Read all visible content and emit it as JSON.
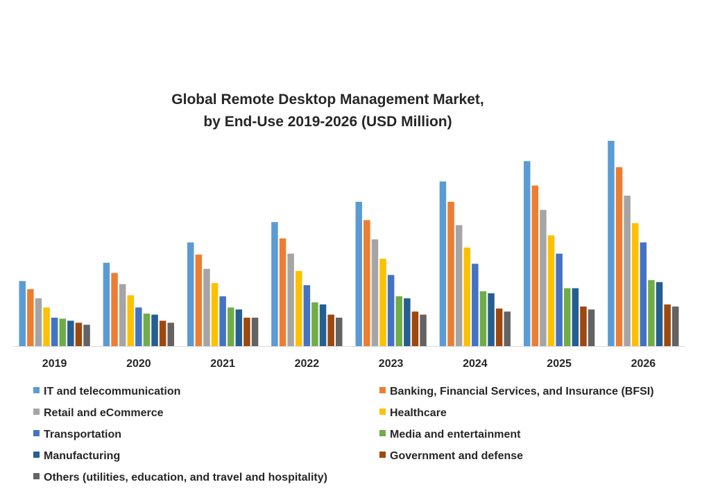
{
  "colors": {
    "series": [
      "#5b9bd5",
      "#ed7d31",
      "#a5a5a5",
      "#ffc000",
      "#4472c4",
      "#70ad47",
      "#255e91",
      "#9e480e",
      "#636363"
    ],
    "axis_line": "#d9d9d9",
    "text": "#262626"
  },
  "chart_data": {
    "type": "bar",
    "title": [
      "Global Remote Desktop Management Market,",
      "by End-Use 2019-2026 (USD Million)"
    ],
    "categories": [
      "2019",
      "2020",
      "2021",
      "2022",
      "2023",
      "2024",
      "2025",
      "2026"
    ],
    "grid": false,
    "legend": "bottom",
    "ylim": [
      0,
      100
    ],
    "series": [
      {
        "name": "IT and telecommunication",
        "values": [
          32,
          41,
          51,
          61,
          71,
          81,
          91,
          101
        ]
      },
      {
        "name": "Banking, Financial Services, and Insurance (BFSI)",
        "values": [
          28,
          36,
          45,
          53,
          62,
          71,
          79,
          88
        ]
      },
      {
        "name": "Retail and eCommerce",
        "values": [
          23.5,
          30.5,
          38,
          45.5,
          52.5,
          59.5,
          67,
          74
        ]
      },
      {
        "name": "Healthcare",
        "values": [
          19,
          25,
          31,
          37,
          43,
          48.5,
          54.5,
          60.5
        ]
      },
      {
        "name": "Transportation",
        "values": [
          14,
          19,
          24.5,
          30,
          35,
          40.5,
          45.5,
          51
        ]
      },
      {
        "name": "Media and entertainment",
        "values": [
          13.5,
          16,
          19,
          21.5,
          24.5,
          27,
          28.5,
          32.5
        ]
      },
      {
        "name": "Manufacturing",
        "values": [
          12.5,
          15.5,
          18,
          20.5,
          23.5,
          26,
          28.5,
          31.5
        ]
      },
      {
        "name": "Government and defense",
        "values": [
          11.5,
          12.5,
          14,
          15.5,
          17,
          18.5,
          19.5,
          20.5
        ]
      },
      {
        "name": "Others (utilities, education, and travel and hospitality)",
        "values": [
          10.5,
          11.5,
          14,
          14,
          15.5,
          17,
          18,
          19.5
        ]
      }
    ]
  }
}
